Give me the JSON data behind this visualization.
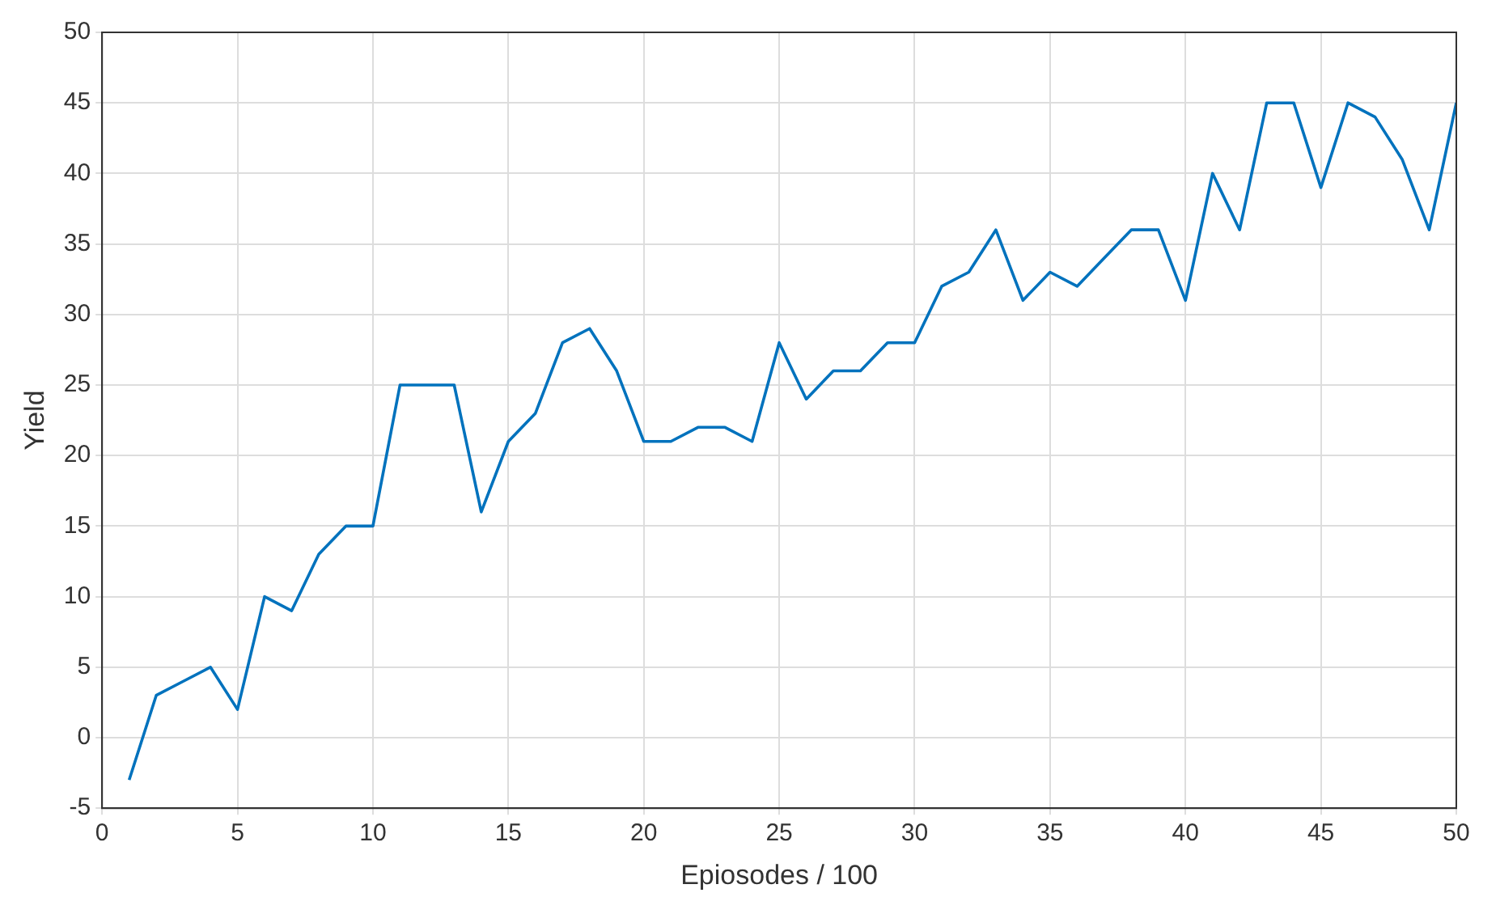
{
  "chart_data": {
    "type": "line",
    "xlabel": "Epiosodes / 100",
    "ylabel": "Yield",
    "x": [
      1,
      2,
      3,
      4,
      5,
      6,
      7,
      8,
      9,
      10,
      11,
      12,
      13,
      14,
      15,
      16,
      17,
      18,
      19,
      20,
      21,
      22,
      23,
      24,
      25,
      26,
      27,
      28,
      29,
      30,
      31,
      32,
      33,
      34,
      35,
      36,
      37,
      38,
      39,
      40,
      41,
      42,
      43,
      44,
      45,
      46,
      47,
      48,
      49,
      50
    ],
    "series": [
      {
        "color": "#0072bd",
        "values": [
          -3,
          3,
          4,
          5,
          2,
          10,
          9,
          13,
          15,
          15,
          25,
          25,
          25,
          16,
          21,
          23,
          28,
          29,
          26,
          21,
          21,
          22,
          22,
          21,
          28,
          24,
          26,
          26,
          28,
          28,
          32,
          33,
          36,
          31,
          33,
          32,
          34,
          36,
          36,
          31,
          40,
          36,
          45,
          45,
          39,
          45,
          44,
          41,
          36,
          45
        ]
      }
    ],
    "xlim": [
      0,
      50
    ],
    "xticks": [
      0,
      5,
      10,
      15,
      20,
      25,
      30,
      35,
      40,
      45,
      50
    ],
    "ylim": [
      -5,
      50
    ],
    "yticks": [
      -5,
      0,
      5,
      10,
      15,
      20,
      25,
      30,
      35,
      40,
      45,
      50
    ],
    "grid": true,
    "marker": "none",
    "line_style": "solid",
    "legend": false
  }
}
